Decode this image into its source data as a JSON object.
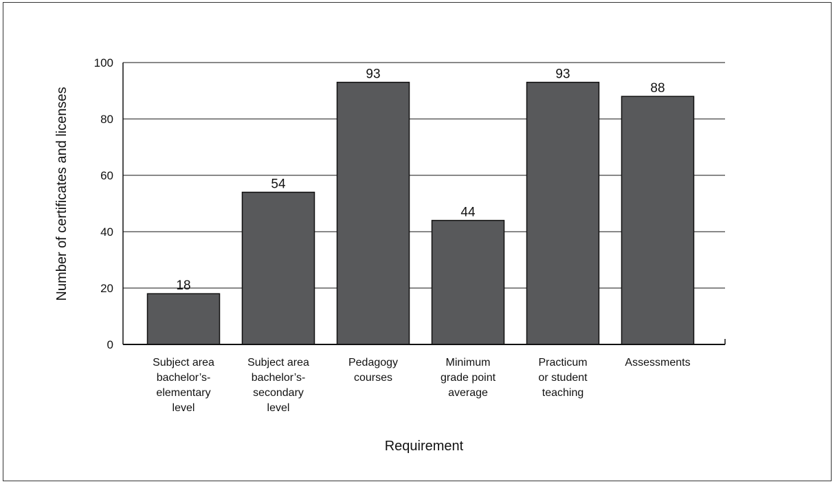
{
  "chart_data": {
    "type": "bar",
    "title": "",
    "xlabel": "Requirement",
    "ylabel": "Number of certificates and licenses",
    "ylim": [
      0,
      100
    ],
    "yticks": [
      0,
      20,
      40,
      60,
      80,
      100
    ],
    "grid": true,
    "legend": "none",
    "bar_color": "#58595b",
    "categories": [
      [
        "Subject area",
        "bachelor’s-",
        "elementary",
        "level"
      ],
      [
        "Subject area",
        "bachelor’s-",
        "secondary",
        "level"
      ],
      [
        "Pedagogy",
        "courses"
      ],
      [
        "Minimum",
        "grade point",
        "average"
      ],
      [
        "Practicum",
        "or student",
        "teaching"
      ],
      [
        "Assessments"
      ]
    ],
    "series": [
      {
        "values": [
          18,
          54,
          93,
          44,
          93,
          88
        ]
      }
    ]
  }
}
